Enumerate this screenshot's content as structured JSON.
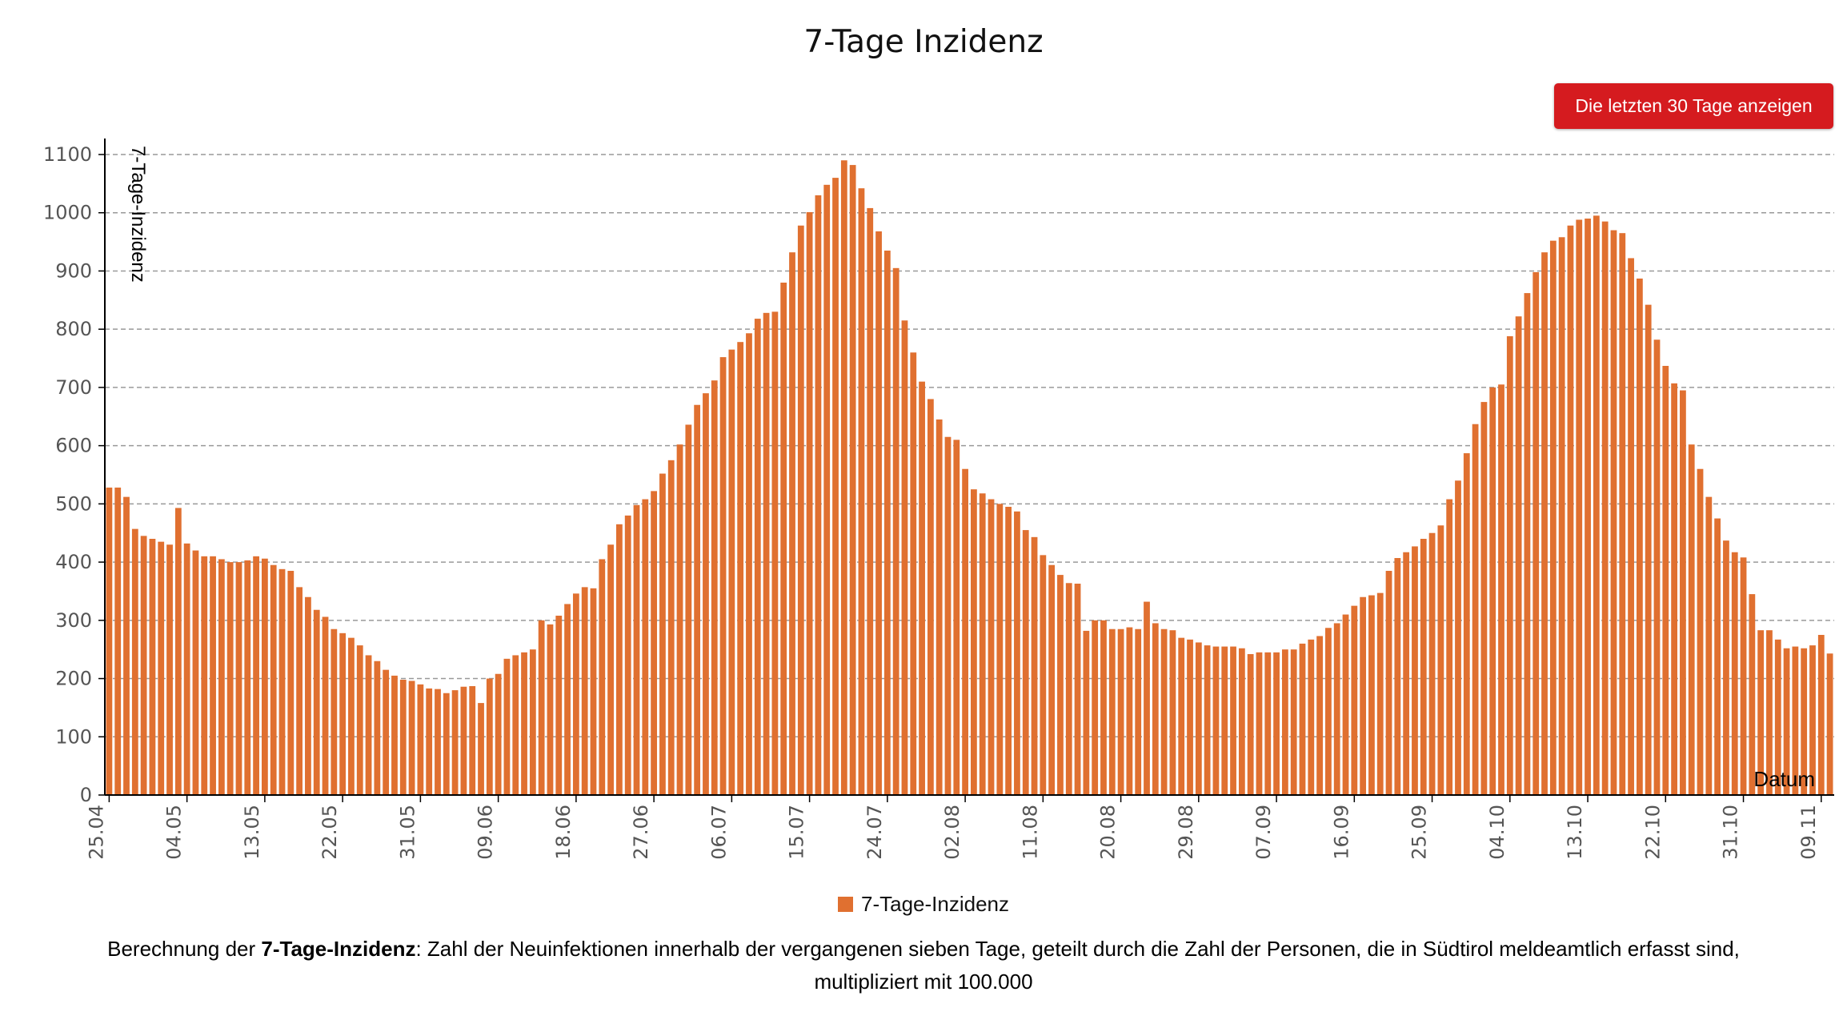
{
  "title": "7-Tage Inzidenz",
  "button": {
    "label": "Die letzten 30 Tage anzeigen"
  },
  "legend": {
    "label": "7-Tage-Inzidenz",
    "color": "#e07030"
  },
  "description": {
    "prefix": "Berechnung der ",
    "bold": "7-Tage-Inzidenz",
    "line1_rest": ": Zahl der Neuinfektionen innerhalb der vergangenen sieben Tage, geteilt durch die Zahl der Personen, die in Südtirol meldeamtlich erfasst sind,",
    "line2": "multipliziert mit 100.000"
  },
  "chart_data": {
    "type": "bar",
    "title": "7-Tage Inzidenz",
    "ylabel": "7-Tage-Inzidenz",
    "xlabel": "Datum",
    "ylim": [
      0,
      1100
    ],
    "yticks": [
      0,
      100,
      200,
      300,
      400,
      500,
      600,
      700,
      800,
      900,
      1000,
      1100
    ],
    "grid": "horizontal dashed",
    "bar_color": "#e07030",
    "x_start": "25.04",
    "x_end": "09.11",
    "xtick_labels": [
      "25.04",
      "04.05",
      "13.05",
      "22.05",
      "31.05",
      "09.06",
      "18.06",
      "27.06",
      "06.07",
      "15.07",
      "24.07",
      "02.08",
      "11.08",
      "20.08",
      "29.08",
      "07.09",
      "16.09",
      "25.09",
      "04.10",
      "13.10",
      "22.10",
      "31.10",
      "09.11"
    ],
    "series": [
      {
        "name": "7-Tage-Inzidenz",
        "values": [
          528,
          528,
          512,
          457,
          445,
          440,
          435,
          430,
          493,
          432,
          420,
          410,
          410,
          405,
          400,
          400,
          403,
          410,
          406,
          395,
          388,
          385,
          357,
          340,
          318,
          306,
          285,
          278,
          270,
          257,
          240,
          230,
          215,
          205,
          198,
          196,
          190,
          183,
          182,
          175,
          180,
          186,
          187,
          158,
          200,
          208,
          234,
          240,
          245,
          250,
          300,
          293,
          308,
          328,
          346,
          357,
          355,
          405,
          430,
          465,
          480,
          498,
          508,
          522,
          552,
          575,
          602,
          636,
          670,
          690,
          712,
          752,
          765,
          778,
          793,
          818,
          828,
          830,
          880,
          932,
          978,
          1001,
          1030,
          1048,
          1060,
          1090,
          1082,
          1042,
          1008,
          968,
          935,
          905,
          815,
          760,
          710,
          680,
          645,
          615,
          610,
          560,
          525,
          518,
          508,
          500,
          495,
          487,
          455,
          443,
          412,
          395,
          378,
          364,
          363,
          282,
          300,
          300,
          285,
          285,
          288,
          285,
          332,
          295,
          285,
          283,
          270,
          267,
          262,
          257,
          255,
          255,
          255,
          252,
          242,
          245,
          245,
          245,
          250,
          250,
          260,
          267,
          273,
          287,
          295,
          310,
          325,
          340,
          343,
          347,
          385,
          407,
          417,
          427,
          440,
          450,
          463,
          508,
          540,
          587,
          637,
          675,
          700,
          705,
          788,
          822,
          862,
          898,
          932,
          952,
          958,
          978,
          988,
          990,
          995,
          985,
          970,
          965,
          922,
          887,
          842,
          782,
          737,
          707,
          695,
          602,
          560,
          512,
          475,
          437,
          417,
          408,
          345,
          283,
          283,
          267,
          252,
          255,
          252,
          257,
          275,
          243
        ]
      }
    ]
  }
}
